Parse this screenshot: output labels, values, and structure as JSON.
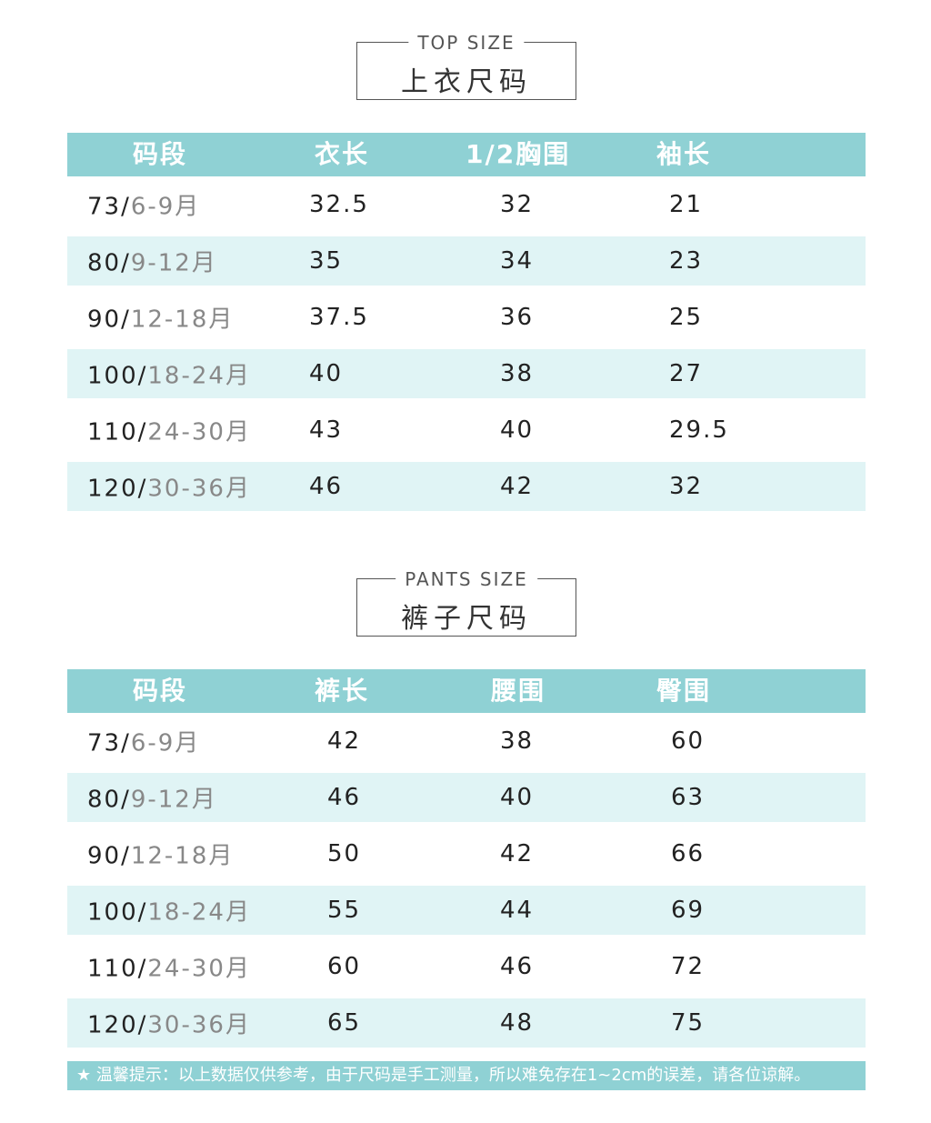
{
  "top": {
    "title_en": "TOP SIZE",
    "title_cn": "上衣尺码",
    "headers": [
      "码段",
      "衣长",
      "1/2胸围",
      "袖长"
    ],
    "rows": [
      {
        "size": "73/",
        "age": "6-9月",
        "v1": "32.5",
        "v2": "32",
        "v3": "21"
      },
      {
        "size": "80/",
        "age": "9-12月",
        "v1": "35",
        "v2": "34",
        "v3": "23"
      },
      {
        "size": "90/",
        "age": "12-18月",
        "v1": "37.5",
        "v2": "36",
        "v3": "25"
      },
      {
        "size": "100/",
        "age": "18-24月",
        "v1": "40",
        "v2": "38",
        "v3": "27"
      },
      {
        "size": "110/",
        "age": "24-30月",
        "v1": "43",
        "v2": "40",
        "v3": "29.5"
      },
      {
        "size": "120/",
        "age": "30-36月",
        "v1": "46",
        "v2": "42",
        "v3": "32"
      }
    ]
  },
  "pants": {
    "title_en": "PANTS SIZE",
    "title_cn": "裤子尺码",
    "headers": [
      "码段",
      "裤长",
      "腰围",
      "臀围"
    ],
    "rows": [
      {
        "size": "73/",
        "age": "6-9月",
        "v1": "42",
        "v2": "38",
        "v3": "60"
      },
      {
        "size": "80/",
        "age": "9-12月",
        "v1": "46",
        "v2": "40",
        "v3": "63"
      },
      {
        "size": "90/",
        "age": "12-18月",
        "v1": "50",
        "v2": "42",
        "v3": "66"
      },
      {
        "size": "100/",
        "age": "18-24月",
        "v1": "55",
        "v2": "44",
        "v3": "69"
      },
      {
        "size": "110/",
        "age": "24-30月",
        "v1": "60",
        "v2": "46",
        "v3": "72"
      },
      {
        "size": "120/",
        "age": "30-36月",
        "v1": "65",
        "v2": "48",
        "v3": "75"
      }
    ]
  },
  "note": "★ 温馨提示：以上数据仅供参考，由于尺码是手工测量，所以难免存在1~2cm的误差，请各位谅解。",
  "colors": {
    "header_bg": "#8fd1d4",
    "alt_row_bg": "#e0f4f5"
  }
}
